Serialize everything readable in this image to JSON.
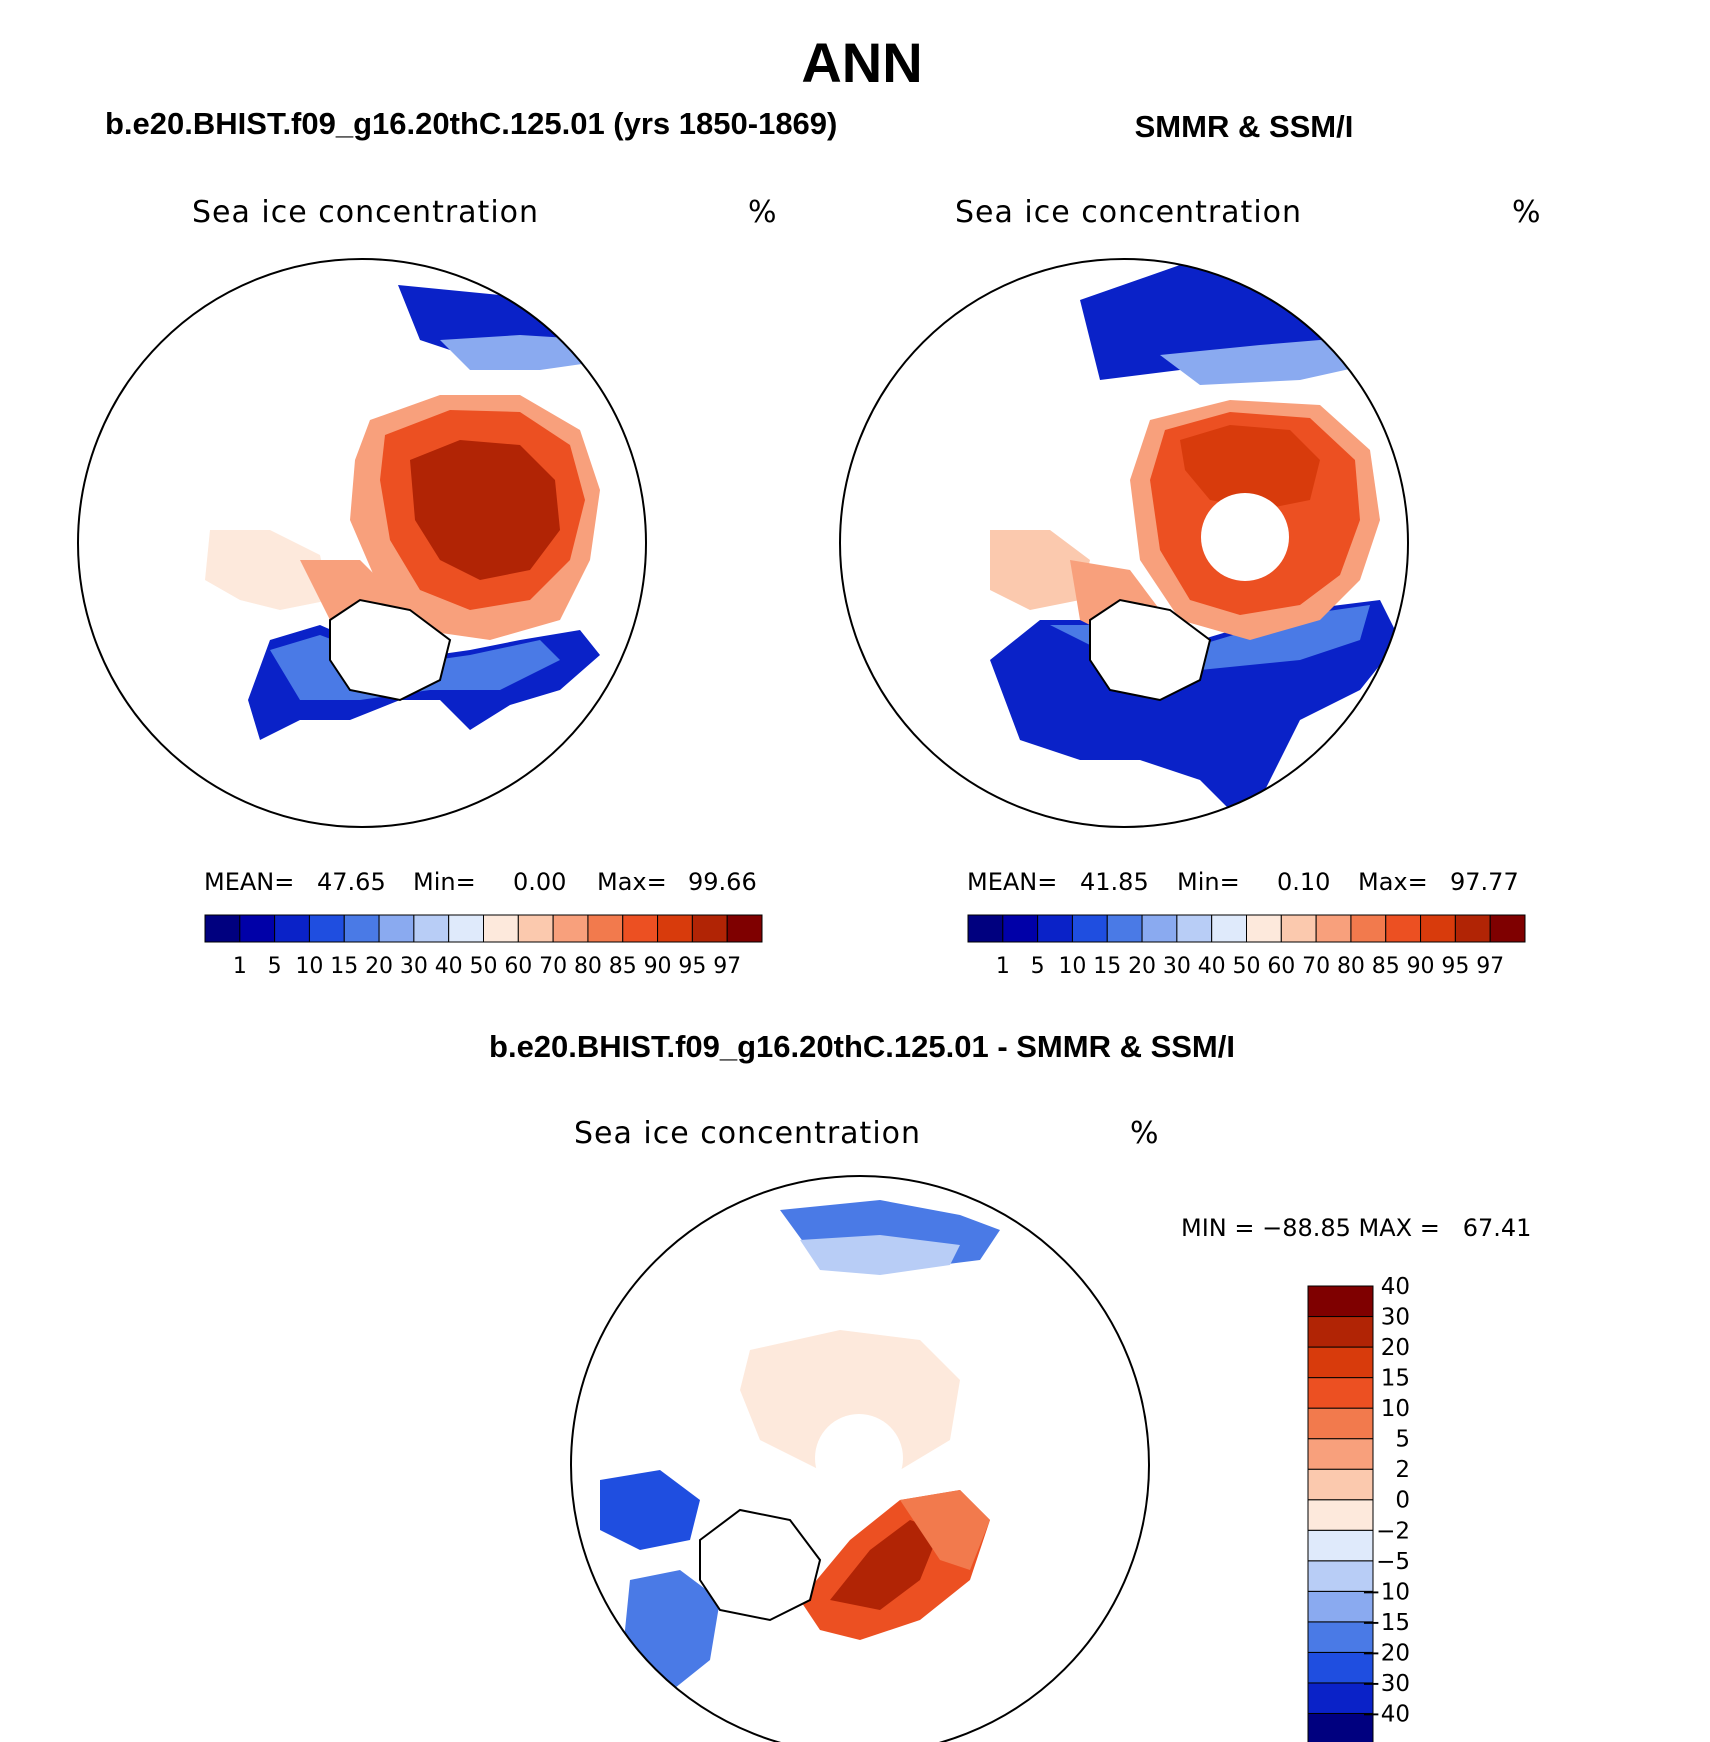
{
  "title": "ANN",
  "panels": [
    {
      "heading": "b.e20.BHIST.f09_g16.20thC.125.01 (yrs 1850-1869)",
      "variable": "Sea ice concentration",
      "units": "%",
      "stats": {
        "mean_label": "MEAN=",
        "mean": "47.65",
        "min_label": "Min=",
        "min": "0.00",
        "max_label": "Max=",
        "max": "99.66"
      }
    },
    {
      "heading": "SMMR & SSM/I",
      "variable": "Sea ice concentration",
      "units": "%",
      "stats": {
        "mean_label": "MEAN=",
        "mean": "41.85",
        "min_label": "Min=",
        "min": "0.10",
        "max_label": "Max=",
        "max": "97.77"
      }
    },
    {
      "heading": "b.e20.BHIST.f09_g16.20thC.125.01 - SMMR & SSM/I",
      "variable": "Sea ice concentration",
      "units": "%",
      "minmax": "MIN = −88.85 MAX =   67.41"
    }
  ],
  "colorbar_conc": {
    "colors": [
      "#00007f",
      "#0000a8",
      "#0a22c8",
      "#1f4ee0",
      "#4a7ae6",
      "#8aaaf0",
      "#b8cdf6",
      "#dfeafb",
      "#fde9dc",
      "#fbc9ae",
      "#f8a07c",
      "#f27a4d",
      "#ec5022",
      "#d83b0c",
      "#b12405",
      "#7f0000"
    ],
    "labels": [
      "1",
      "5",
      "10",
      "15",
      "20",
      "30",
      "40",
      "50",
      "60",
      "70",
      "80",
      "85",
      "90",
      "95",
      "97"
    ]
  },
  "colorbar_diff": {
    "colors": [
      "#00007f",
      "#0a22c8",
      "#1f4ee0",
      "#4a7ae6",
      "#8aaaf0",
      "#b8cdf6",
      "#dfeafb",
      "#fde9dc",
      "#fbc9ae",
      "#f8a07c",
      "#f27a4d",
      "#ec5022",
      "#d83b0c",
      "#b12405",
      "#7f0000"
    ],
    "labels": [
      "−40",
      "−30",
      "−20",
      "−15",
      "−10",
      "−5",
      "−2",
      "0",
      "2",
      "5",
      "10",
      "15",
      "20",
      "30",
      "40"
    ]
  },
  "chart_data": [
    {
      "type": "heatmap",
      "title": "b.e20.BHIST.f09_g16.20thC.125.01 (yrs 1850-1869)",
      "variable": "Sea ice concentration",
      "units": "%",
      "projection": "north polar stereographic",
      "mean": 47.65,
      "min": 0.0,
      "max": 99.66,
      "levels": [
        1,
        5,
        10,
        15,
        20,
        30,
        40,
        50,
        60,
        70,
        80,
        85,
        90,
        95,
        97
      ]
    },
    {
      "type": "heatmap",
      "title": "SMMR & SSM/I",
      "variable": "Sea ice concentration",
      "units": "%",
      "projection": "north polar stereographic",
      "mean": 41.85,
      "min": 0.1,
      "max": 97.77,
      "levels": [
        1,
        5,
        10,
        15,
        20,
        30,
        40,
        50,
        60,
        70,
        80,
        85,
        90,
        95,
        97
      ]
    },
    {
      "type": "heatmap",
      "title": "b.e20.BHIST.f09_g16.20thC.125.01 - SMMR & SSM/I",
      "variable": "Sea ice concentration",
      "units": "%",
      "projection": "north polar stereographic",
      "min": -88.85,
      "max": 67.41,
      "levels": [
        -40,
        -30,
        -20,
        -15,
        -10,
        -5,
        -2,
        0,
        2,
        5,
        10,
        15,
        20,
        30,
        40
      ]
    }
  ]
}
